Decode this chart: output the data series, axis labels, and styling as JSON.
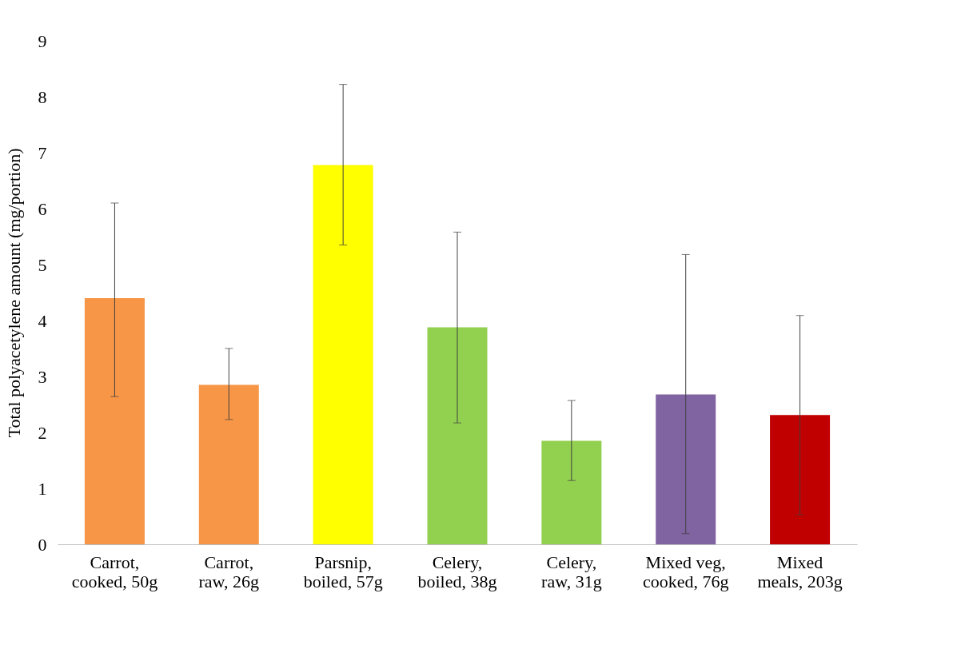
{
  "chart_data": {
    "type": "bar",
    "ylabel": "Total polyacetylene amount (mg/portion)",
    "categories": [
      "Carrot, cooked, 50g",
      "Carrot, raw, 26g",
      "Parsnip, boiled, 57g",
      "Celery, boiled, 38g",
      "Celery, raw, 31g",
      "Mixed veg, cooked, 76g",
      "Mixed meals, 203g"
    ],
    "values": [
      4.4,
      2.85,
      6.78,
      3.88,
      1.85,
      2.68,
      2.31
    ],
    "colors": [
      "#f79646",
      "#f79646",
      "#ffff00",
      "#92d050",
      "#92d050",
      "#8064a2",
      "#c00000"
    ],
    "errors": [
      [
        2.64,
        6.1
      ],
      [
        2.23,
        3.5
      ],
      [
        5.35,
        8.22
      ],
      [
        2.17,
        5.58
      ],
      [
        1.14,
        2.57
      ],
      [
        0.19,
        5.18
      ],
      [
        0.53,
        4.09
      ]
    ],
    "ylim": [
      0,
      9
    ],
    "yticks": [
      0,
      1,
      2,
      3,
      4,
      5,
      6,
      7,
      8,
      9
    ],
    "grid": false
  }
}
